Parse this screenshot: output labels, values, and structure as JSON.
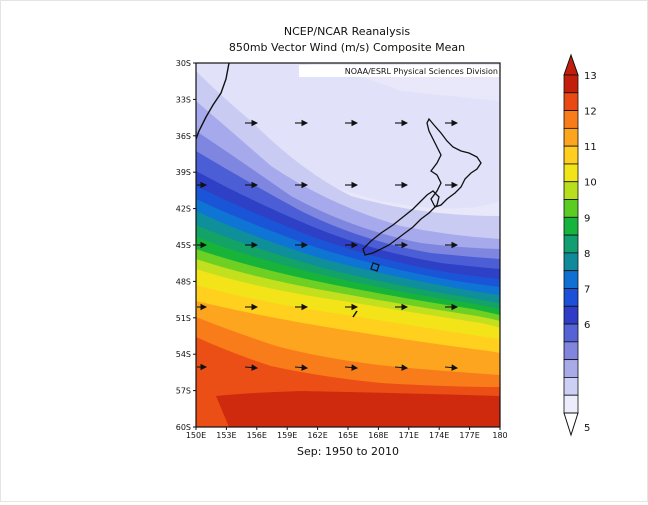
{
  "map": {
    "title_line1": "NCEP/NCAR Reanalysis",
    "title_line2": "850mb Vector Wind (m/s) Composite Mean",
    "credit": "NOAA/ESRL Physical Sciences Division",
    "period": "Sep: 1950 to 2010",
    "lat_ticks": [
      "30S",
      "33S",
      "36S",
      "39S",
      "42S",
      "45S",
      "48S",
      "51S",
      "54S",
      "57S",
      "60S"
    ],
    "lon_ticks": [
      "150E",
      "153E",
      "156E",
      "159E",
      "162E",
      "165E",
      "168E",
      "171E",
      "174E",
      "177E",
      "180"
    ]
  },
  "legend": {
    "labels": [
      "13",
      "12",
      "11",
      "10",
      "9",
      "8",
      "7",
      "6",
      "5"
    ],
    "colors": [
      "#c31d0c",
      "#e94a14",
      "#f97c1a",
      "#fda51e",
      "#ffce1e",
      "#f1e418",
      "#b9de1e",
      "#5bcd22",
      "#16b43c",
      "#119e70",
      "#0f8a9a",
      "#106fd2",
      "#1d50d8",
      "#2f3cc8",
      "#5563d4",
      "#8185de",
      "#a8abe8",
      "#cdd0f4",
      "#ececfc"
    ]
  }
}
